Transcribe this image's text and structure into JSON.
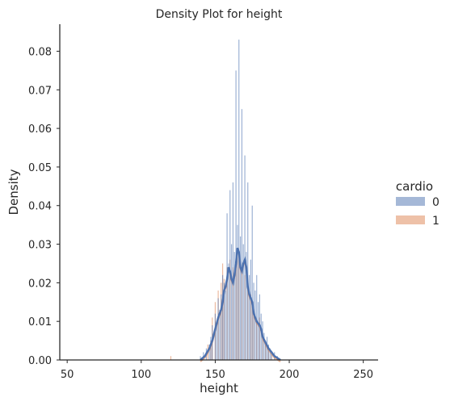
{
  "chart_data": {
    "type": "histogram+kde",
    "title": "Density Plot for height",
    "xlabel": "height",
    "ylabel": "Density",
    "xlim": [
      45,
      260
    ],
    "ylim": [
      0,
      0.087
    ],
    "xticks": [
      {
        "value": 50,
        "label": "50"
      },
      {
        "value": 100,
        "label": "100"
      },
      {
        "value": 150,
        "label": "150"
      },
      {
        "value": 200,
        "label": "200"
      },
      {
        "value": 250,
        "label": "250"
      }
    ],
    "yticks": [
      {
        "value": 0.0,
        "label": "0.00"
      },
      {
        "value": 0.01,
        "label": "0.01"
      },
      {
        "value": 0.02,
        "label": "0.02"
      },
      {
        "value": 0.03,
        "label": "0.03"
      },
      {
        "value": 0.04,
        "label": "0.04"
      },
      {
        "value": 0.05,
        "label": "0.05"
      },
      {
        "value": 0.06,
        "label": "0.06"
      },
      {
        "value": 0.07,
        "label": "0.07"
      },
      {
        "value": 0.08,
        "label": "0.08"
      }
    ],
    "grid": false,
    "legend": {
      "title": "cardio",
      "placement": "right",
      "entries": [
        {
          "label": "0",
          "color": "#4c72b0"
        },
        {
          "label": "1",
          "color": "#dd8452"
        }
      ]
    },
    "series": [
      {
        "name": "0",
        "color": "#4c72b0",
        "bins": [
          [
            140,
            0.001
          ],
          [
            142,
            0.002
          ],
          [
            144,
            0.003
          ],
          [
            146,
            0.004
          ],
          [
            147,
            0.006
          ],
          [
            148,
            0.009
          ],
          [
            150,
            0.012
          ],
          [
            151,
            0.01
          ],
          [
            152,
            0.016
          ],
          [
            153,
            0.013
          ],
          [
            154,
            0.017
          ],
          [
            155,
            0.022
          ],
          [
            156,
            0.02
          ],
          [
            157,
            0.018
          ],
          [
            158,
            0.038
          ],
          [
            159,
            0.025
          ],
          [
            160,
            0.044
          ],
          [
            161,
            0.03
          ],
          [
            162,
            0.046
          ],
          [
            163,
            0.028
          ],
          [
            164,
            0.075
          ],
          [
            165,
            0.035
          ],
          [
            166,
            0.083
          ],
          [
            167,
            0.032
          ],
          [
            168,
            0.065
          ],
          [
            169,
            0.03
          ],
          [
            170,
            0.053
          ],
          [
            171,
            0.028
          ],
          [
            172,
            0.046
          ],
          [
            173,
            0.022
          ],
          [
            174,
            0.026
          ],
          [
            175,
            0.04
          ],
          [
            176,
            0.02
          ],
          [
            177,
            0.018
          ],
          [
            178,
            0.022
          ],
          [
            179,
            0.015
          ],
          [
            180,
            0.017
          ],
          [
            181,
            0.012
          ],
          [
            182,
            0.01
          ],
          [
            183,
            0.007
          ],
          [
            184,
            0.005
          ],
          [
            185,
            0.006
          ],
          [
            186,
            0.004
          ],
          [
            187,
            0.003
          ],
          [
            188,
            0.002
          ],
          [
            190,
            0.002
          ],
          [
            192,
            0.001
          ]
        ]
      },
      {
        "name": "1",
        "color": "#dd8452",
        "bins": [
          [
            120,
            0.001
          ],
          [
            145,
            0.004
          ],
          [
            147,
            0.005
          ],
          [
            148,
            0.011
          ],
          [
            150,
            0.015
          ],
          [
            152,
            0.018
          ],
          [
            154,
            0.02
          ],
          [
            155,
            0.025
          ],
          [
            156,
            0.021
          ],
          [
            158,
            0.024
          ],
          [
            160,
            0.026
          ],
          [
            162,
            0.024
          ],
          [
            164,
            0.025
          ],
          [
            165,
            0.027
          ],
          [
            166,
            0.026
          ],
          [
            168,
            0.024
          ],
          [
            170,
            0.022
          ],
          [
            172,
            0.02
          ],
          [
            174,
            0.017
          ],
          [
            175,
            0.015
          ],
          [
            176,
            0.012
          ],
          [
            178,
            0.01
          ],
          [
            180,
            0.011
          ],
          [
            182,
            0.007
          ],
          [
            184,
            0.004
          ],
          [
            186,
            0.003
          ],
          [
            188,
            0.002
          ]
        ]
      }
    ],
    "kde": [
      [
        140,
        0.0
      ],
      [
        143,
        0.001
      ],
      [
        146,
        0.003
      ],
      [
        148,
        0.005
      ],
      [
        150,
        0.008
      ],
      [
        152,
        0.011
      ],
      [
        154,
        0.013
      ],
      [
        155,
        0.015
      ],
      [
        156,
        0.018
      ],
      [
        157,
        0.019
      ],
      [
        158,
        0.021
      ],
      [
        159,
        0.024
      ],
      [
        160,
        0.023
      ],
      [
        161,
        0.021
      ],
      [
        162,
        0.02
      ],
      [
        163,
        0.022
      ],
      [
        164,
        0.025
      ],
      [
        165,
        0.029
      ],
      [
        166,
        0.028
      ],
      [
        167,
        0.024
      ],
      [
        168,
        0.023
      ],
      [
        169,
        0.025
      ],
      [
        170,
        0.026
      ],
      [
        171,
        0.024
      ],
      [
        172,
        0.019
      ],
      [
        173,
        0.017
      ],
      [
        174,
        0.016
      ],
      [
        175,
        0.015
      ],
      [
        176,
        0.012
      ],
      [
        177,
        0.011
      ],
      [
        178,
        0.01
      ],
      [
        179,
        0.0095
      ],
      [
        180,
        0.009
      ],
      [
        181,
        0.008
      ],
      [
        182,
        0.006
      ],
      [
        184,
        0.0045
      ],
      [
        186,
        0.003
      ],
      [
        188,
        0.002
      ],
      [
        190,
        0.001
      ],
      [
        194,
        0.0
      ]
    ]
  }
}
